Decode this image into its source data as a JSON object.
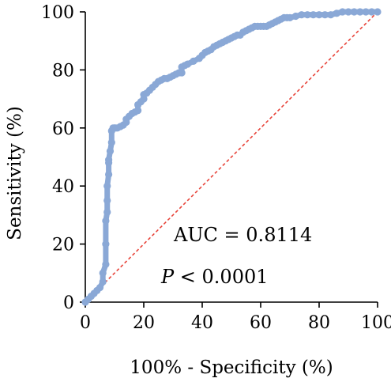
{
  "chart_data": {
    "type": "line",
    "xlabel": "100% - Specificity (%)",
    "ylabel": "Sensitivity (%)",
    "xlim": [
      0,
      100
    ],
    "ylim": [
      0,
      100
    ],
    "x_ticks": [
      0,
      20,
      40,
      60,
      80,
      100
    ],
    "y_ticks": [
      0,
      20,
      40,
      60,
      80,
      100
    ],
    "grid": false,
    "annotations": {
      "auc": "AUC = 0.8114",
      "p_italic": "P",
      "p_rest": " < 0.0001"
    },
    "series": [
      {
        "color": "#8aa8d6",
        "x": [
          0,
          1,
          2,
          3,
          4,
          5,
          6,
          6,
          7,
          7,
          7,
          7.5,
          7.5,
          7.5,
          8,
          8,
          8,
          8.5,
          9,
          9,
          9.5,
          10,
          10,
          10.5,
          11,
          12,
          13,
          14,
          14,
          15,
          16,
          17,
          18,
          18,
          19,
          20,
          20,
          21,
          22,
          23,
          24,
          25,
          26,
          27,
          28,
          29,
          30,
          31,
          32,
          33,
          33,
          34,
          35,
          37,
          39,
          40,
          41,
          42,
          43,
          44,
          45,
          46,
          47,
          48,
          49,
          50,
          51,
          52,
          53,
          54,
          55,
          56,
          57,
          58,
          59,
          60,
          61,
          62,
          63,
          64,
          65,
          66,
          67,
          68,
          69,
          70,
          72,
          74,
          76,
          78,
          80,
          82,
          84,
          86,
          88,
          90,
          92,
          94,
          96,
          98,
          100
        ],
        "y": [
          0,
          1,
          2,
          3,
          4,
          5,
          7,
          10,
          13,
          20,
          28,
          31,
          35,
          40,
          44,
          48,
          49,
          52,
          55,
          59,
          60,
          60,
          60,
          60,
          60,
          60.5,
          61,
          62,
          63,
          64,
          65,
          65.5,
          66,
          68,
          69,
          70,
          71.5,
          72,
          73,
          74,
          75,
          76,
          76.5,
          77,
          77,
          77.5,
          78,
          78.5,
          79,
          79,
          81,
          81.5,
          82,
          83,
          84,
          85,
          86,
          86.5,
          87,
          88,
          88.5,
          89,
          89.5,
          90,
          90.5,
          91,
          91.5,
          92,
          92,
          93,
          93.5,
          94,
          94.5,
          95,
          95,
          95,
          95,
          95,
          95.5,
          96,
          96.5,
          97,
          97.5,
          98,
          98,
          98,
          98.5,
          99,
          99,
          99,
          99,
          99,
          99,
          99.5,
          100,
          100,
          100,
          100,
          100,
          100,
          100
        ]
      }
    ],
    "reference_line": {
      "x": [
        0,
        100
      ],
      "y": [
        0,
        100
      ],
      "color": "#e8443a",
      "style": "dashed"
    }
  }
}
